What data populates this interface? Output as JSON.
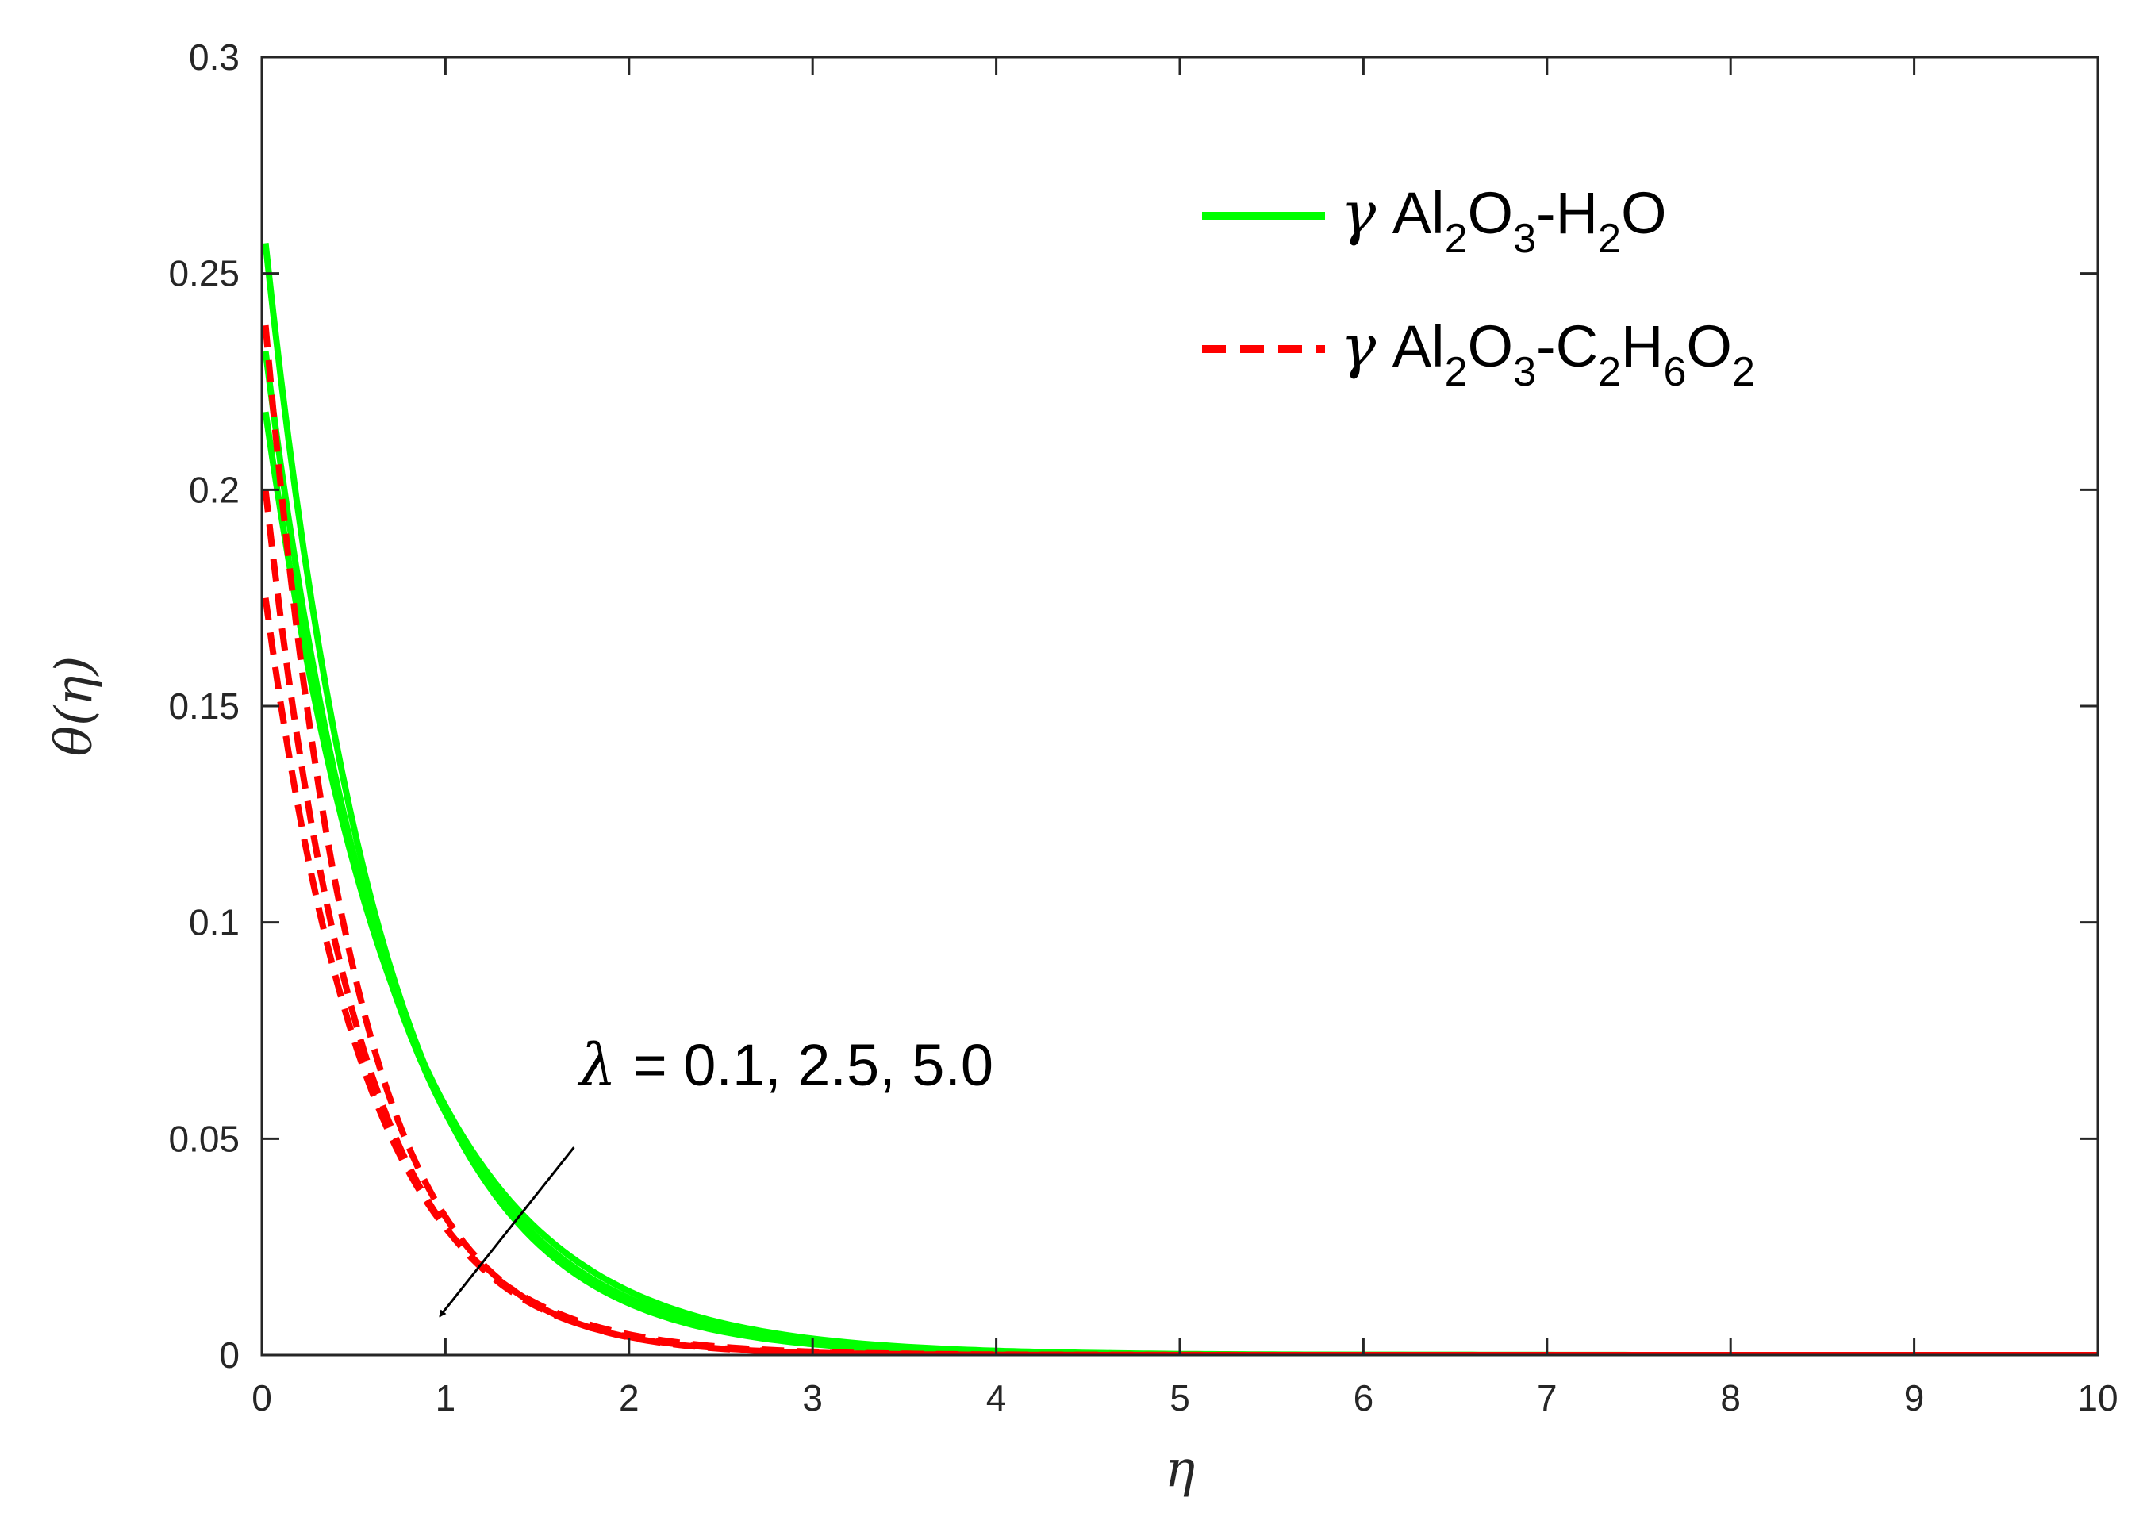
{
  "chart_data": {
    "type": "line",
    "title": "",
    "xlabel": "η",
    "ylabel": "θ(η)",
    "xlim": [
      0,
      10
    ],
    "ylim": [
      0,
      0.3
    ],
    "xticks": [
      0,
      1,
      2,
      3,
      4,
      5,
      6,
      7,
      8,
      9,
      10
    ],
    "xtick_labels": [
      "0",
      "1",
      "2",
      "3",
      "4",
      "5",
      "6",
      "7",
      "8",
      "9",
      "10"
    ],
    "yticks": [
      0,
      0.05,
      0.1,
      0.15,
      0.2,
      0.25,
      0.3
    ],
    "ytick_labels": [
      "0",
      "0.05",
      "0.1",
      "0.15",
      "0.2",
      "0.25",
      "0.3"
    ],
    "grid": false,
    "legend": {
      "placement": "top-right",
      "entries": [
        {
          "style": "solid",
          "color": "#00ff00",
          "label_parts": [
            {
              "t": "γ",
              "s": "greek"
            },
            {
              "t": " Al"
            },
            {
              "t": "2",
              "s": "sub"
            },
            {
              "t": "O"
            },
            {
              "t": "3",
              "s": "sub"
            },
            {
              "t": "-H"
            },
            {
              "t": "2",
              "s": "sub"
            },
            {
              "t": "O"
            }
          ]
        },
        {
          "style": "dashed",
          "color": "#ff0000",
          "label_parts": [
            {
              "t": "γ",
              "s": "greek"
            },
            {
              "t": " Al"
            },
            {
              "t": "2",
              "s": "sub"
            },
            {
              "t": "O"
            },
            {
              "t": "3",
              "s": "sub"
            },
            {
              "t": "-C"
            },
            {
              "t": "2",
              "s": "sub"
            },
            {
              "t": "H"
            },
            {
              "t": "6",
              "s": "sub"
            },
            {
              "t": "O"
            },
            {
              "t": "2",
              "s": "sub"
            }
          ]
        }
      ]
    },
    "annotation": {
      "lambda_symbol": "λ",
      "text": " = 0.1, 2.5, 5.0",
      "arrow_from": [
        1.7,
        0.048
      ],
      "arrow_to": [
        0.97,
        0.009
      ]
    },
    "series": [
      {
        "group": 0,
        "style": "solid",
        "color": "#00ff00",
        "x0": 0.02,
        "y0": 0.257,
        "decay": 1.55
      },
      {
        "group": 0,
        "style": "solid",
        "color": "#00ff00",
        "x0": 0.02,
        "y0": 0.232,
        "decay": 1.45
      },
      {
        "group": 0,
        "style": "solid",
        "color": "#00ff00",
        "x0": 0.02,
        "y0": 0.218,
        "decay": 1.36
      },
      {
        "group": 1,
        "style": "dashed",
        "color": "#ff0000",
        "x0": 0.02,
        "y0": 0.238,
        "decay": 2.05
      },
      {
        "group": 1,
        "style": "dashed",
        "color": "#ff0000",
        "x0": 0.02,
        "y0": 0.2,
        "decay": 1.95
      },
      {
        "group": 1,
        "style": "dashed",
        "color": "#ff0000",
        "x0": 0.02,
        "y0": 0.175,
        "decay": 1.82
      }
    ]
  }
}
